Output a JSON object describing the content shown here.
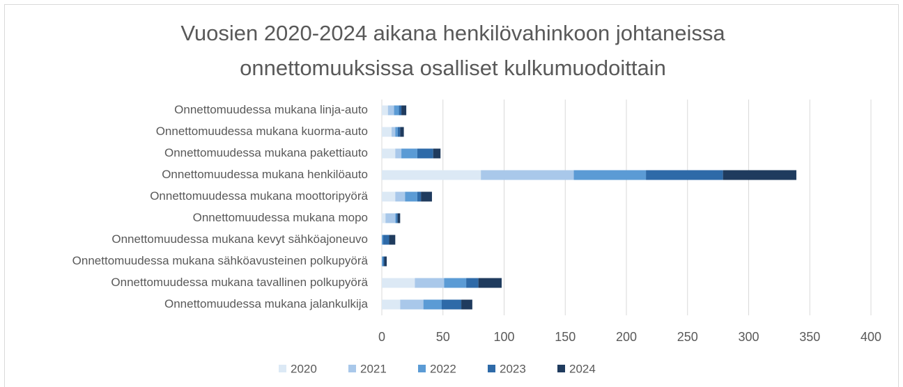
{
  "chart_data": {
    "type": "stacked_bar_horizontal",
    "title": [
      "Vuosien 2020-2024 aikana henkilövahinkoon johtaneissa",
      "onnettomuuksissa osalliset kulkumuodoittain"
    ],
    "categories": [
      "Onnettomuudessa mukana linja-auto",
      "Onnettomuudessa mukana kuorma-auto",
      "Onnettomuudessa mukana pakettiauto",
      "Onnettomuudessa mukana henkilöauto",
      "Onnettomuudessa mukana moottoripyörä",
      "Onnettomuudessa mukana mopo",
      "Onnettomuudessa mukana kevyt sähköajoneuvo",
      "Onnettomuudessa mukana sähköavusteinen polkupyörä",
      "Onnettomuudessa mukana tavallinen polkupyörä",
      "Onnettomuudessa mukana jalankulkija"
    ],
    "series": [
      {
        "name": "2020",
        "color": "#dce9f5",
        "values": [
          5,
          8,
          11,
          81,
          11,
          3,
          0,
          0,
          27,
          15
        ]
      },
      {
        "name": "2021",
        "color": "#a9c8ea",
        "values": [
          5,
          3,
          5,
          76,
          8,
          8,
          0,
          0,
          24,
          19
        ]
      },
      {
        "name": "2022",
        "color": "#5b9bd5",
        "values": [
          4,
          2,
          13,
          59,
          10,
          1,
          1,
          1,
          18,
          15
        ]
      },
      {
        "name": "2023",
        "color": "#2e6aa8",
        "values": [
          2,
          2,
          13,
          63,
          3,
          1,
          5,
          1,
          10,
          16
        ]
      },
      {
        "name": "2024",
        "color": "#1f3b5e",
        "values": [
          4,
          3,
          6,
          60,
          9,
          2,
          5,
          2,
          19,
          9
        ]
      }
    ],
    "xlim": [
      0,
      400
    ],
    "xticks": [
      0,
      50,
      100,
      150,
      200,
      250,
      300,
      350,
      400
    ],
    "grid": true,
    "legend": "bottom"
  }
}
